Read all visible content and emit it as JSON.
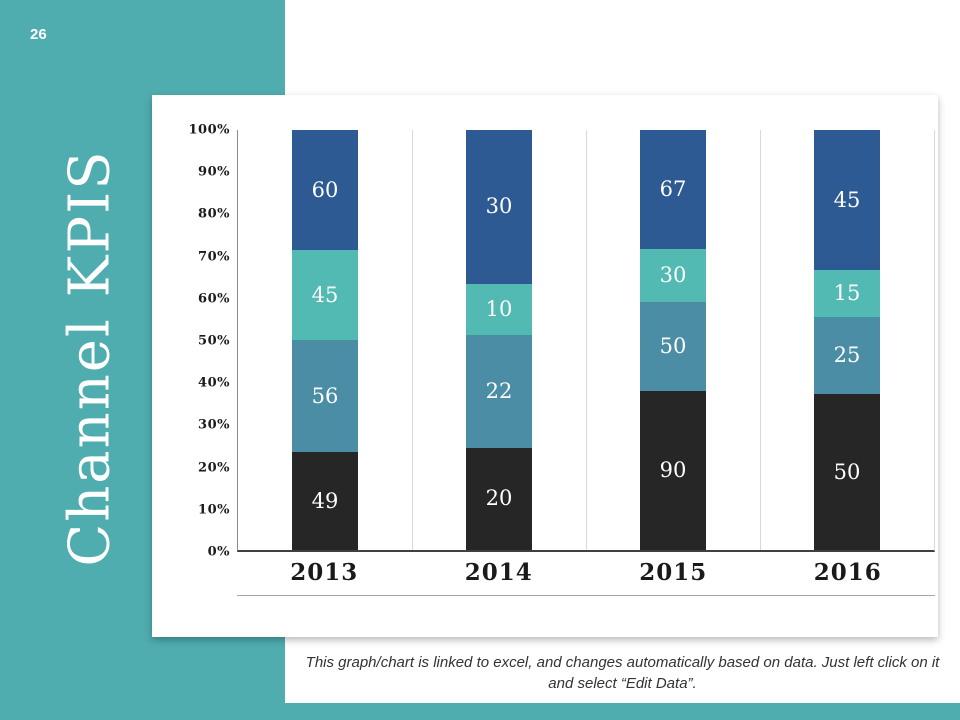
{
  "slide": {
    "page_number": "26",
    "title": "Channel KPIS",
    "caption": "This graph/chart is linked to excel, and changes automatically based on data. Just left click on it and select “Edit Data”.",
    "accent_color": "#4FADAF"
  },
  "chart_data": {
    "type": "bar",
    "stacked": true,
    "percent_stacked": true,
    "title": "",
    "xlabel": "",
    "ylabel": "",
    "ylim": [
      0,
      100
    ],
    "grid": "vertical-category-separators",
    "legend": "none",
    "categories": [
      "2013",
      "2014",
      "2015",
      "2016"
    ],
    "series": [
      {
        "name": "segment-1-bottom",
        "color": "#262626",
        "values": [
          49,
          20,
          90,
          50
        ]
      },
      {
        "name": "segment-2",
        "color": "#4A8DA4",
        "values": [
          56,
          22,
          50,
          25
        ]
      },
      {
        "name": "segment-3",
        "color": "#52BAB3",
        "values": [
          45,
          10,
          30,
          15
        ]
      },
      {
        "name": "segment-4-top",
        "color": "#2E5A94",
        "values": [
          60,
          30,
          67,
          45
        ]
      }
    ],
    "y_ticks": [
      "100%",
      "90%",
      "80%",
      "70%",
      "60%",
      "50%",
      "40%",
      "30%",
      "20%",
      "10%",
      "0%"
    ]
  }
}
